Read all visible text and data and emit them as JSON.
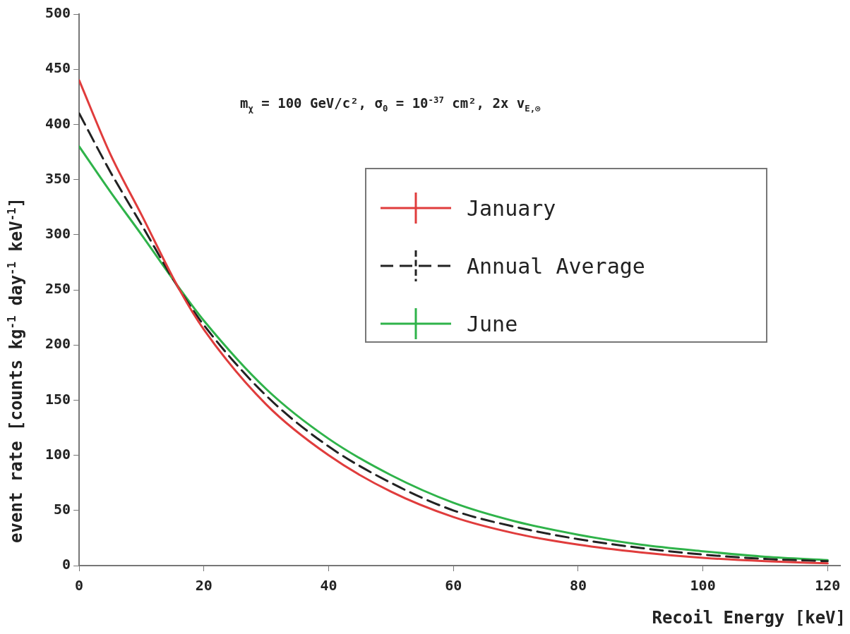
{
  "chart_data": {
    "type": "line",
    "xlabel": "Recoil Energy [keV]",
    "ylabel": "event rate [counts kg$^{-1}$ day$^{-1}$ keV$^{-1}$]",
    "annotations": [
      "m$_{χ}$ = 100 GeV/c², σ$_{0}$ = 10$^{-37}$ cm², 2x v$_{E,⊙}$"
    ],
    "x": [
      0,
      5,
      10,
      16,
      20,
      30,
      40,
      50,
      60,
      70,
      80,
      90,
      100,
      110,
      120
    ],
    "series": [
      {
        "name": "January",
        "color": "#e03c3c",
        "values": [
          440,
          373,
          318,
          251,
          214,
          146,
          100,
          67,
          44,
          29,
          19,
          12,
          7,
          4,
          2
        ]
      },
      {
        "name": "Annual Average",
        "color": "#222222",
        "line_style": "dashed",
        "values": [
          410,
          357,
          309,
          251,
          218,
          154,
          108,
          75,
          50,
          35,
          24,
          16,
          10,
          6,
          4
        ]
      },
      {
        "name": "June",
        "color": "#2fb34a",
        "values": [
          380,
          339,
          300,
          252,
          222,
          160,
          115,
          82,
          57,
          40,
          28,
          19,
          13,
          8,
          5
        ]
      }
    ],
    "xlim": [
      0,
      122
    ],
    "xticks": [
      0,
      20,
      40,
      60,
      80,
      100,
      120
    ],
    "ylim": [
      0,
      500
    ],
    "yticks": [
      0,
      50,
      100,
      150,
      200,
      250,
      300,
      350,
      400,
      450,
      500
    ],
    "legend": "top right",
    "grid": false,
    "marker": "none",
    "line_style": "solid"
  }
}
